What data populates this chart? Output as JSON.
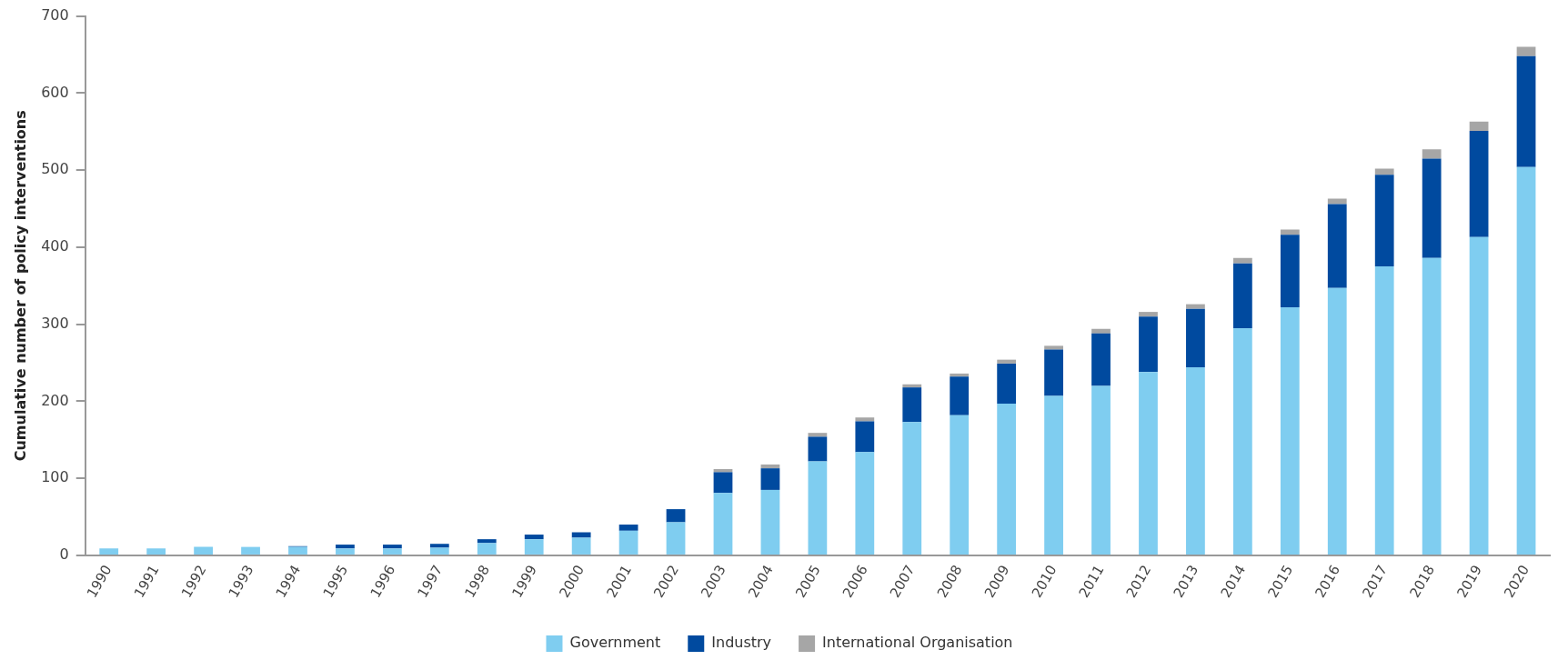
{
  "chart_data": {
    "type": "bar",
    "ylabel": "Cumulative number of policy interventions",
    "categories": [
      "1990",
      "1991",
      "1992",
      "1993",
      "1994",
      "1995",
      "1996",
      "1997",
      "1998",
      "1999",
      "2000",
      "2001",
      "2002",
      "2003",
      "2004",
      "2005",
      "2006",
      "2007",
      "2008",
      "2009",
      "2010",
      "2011",
      "2012",
      "2013",
      "2014",
      "2015",
      "2016",
      "2017",
      "2018",
      "2019",
      "2020"
    ],
    "stacked": true,
    "series": [
      {
        "name": "Government",
        "color": "#7fcdf0",
        "values": [
          9,
          9,
          11,
          11,
          11,
          9,
          9,
          10,
          16,
          21,
          23,
          32,
          43,
          81,
          85,
          122,
          134,
          173,
          182,
          197,
          207,
          220,
          238,
          244,
          295,
          322,
          347,
          375,
          386,
          413,
          504
        ]
      },
      {
        "name": "Industry",
        "color": "#004a9f",
        "values": [
          0,
          0,
          0,
          0,
          1,
          5,
          5,
          5,
          5,
          6,
          7,
          8,
          17,
          27,
          28,
          32,
          40,
          45,
          50,
          52,
          60,
          68,
          72,
          76,
          84,
          94,
          109,
          119,
          129,
          138,
          144
        ]
      },
      {
        "name": "International Organisation",
        "color": "#a6a6a6",
        "values": [
          0,
          0,
          0,
          0,
          0,
          0,
          0,
          0,
          0,
          0,
          0,
          0,
          0,
          4,
          5,
          5,
          5,
          4,
          4,
          5,
          5,
          6,
          6,
          6,
          7,
          7,
          7,
          8,
          12,
          12,
          12
        ]
      }
    ],
    "ylim": [
      0,
      700
    ],
    "yticks": [
      0,
      100,
      200,
      300,
      400,
      500,
      600,
      700
    ],
    "grid": false,
    "legend": "bottom"
  }
}
